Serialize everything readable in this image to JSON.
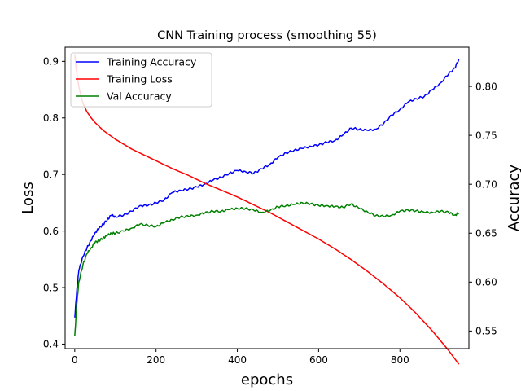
{
  "chart_data": {
    "type": "line",
    "title": "CNN Training process (smoothing 55)",
    "xlabel": "epochs",
    "ylabel_left": "Loss",
    "ylabel_right": "Accuracy",
    "xlim": [
      -23.7,
      969.7
    ],
    "ylim_left": [
      0.392,
      0.925
    ],
    "ylim_right": [
      0.532,
      0.84
    ],
    "x_ticks": [
      0,
      200,
      400,
      600,
      800
    ],
    "y_left_ticks": [
      0.4,
      0.5,
      0.6,
      0.7,
      0.8,
      0.9
    ],
    "y_right_ticks": [
      0.55,
      0.6,
      0.65,
      0.7,
      0.75,
      0.8
    ],
    "legend": {
      "placement": "upper-left",
      "entries": [
        "Training Accuracy",
        "Training Loss",
        "Val Accuracy"
      ]
    },
    "series": [
      {
        "name": "Training Accuracy",
        "axis": "left",
        "color": "#0000ff",
        "x": [
          0,
          5,
          10,
          20,
          30,
          40,
          50,
          60,
          70,
          80,
          90,
          100,
          120,
          140,
          160,
          180,
          200,
          220,
          240,
          260,
          280,
          300,
          320,
          340,
          360,
          380,
          400,
          420,
          440,
          460,
          480,
          500,
          520,
          540,
          560,
          580,
          600,
          620,
          640,
          660,
          680,
          700,
          720,
          740,
          760,
          780,
          800,
          820,
          840,
          860,
          880,
          900,
          920,
          935,
          945
        ],
        "y": [
          0.447,
          0.495,
          0.53,
          0.555,
          0.57,
          0.583,
          0.597,
          0.605,
          0.612,
          0.62,
          0.628,
          0.625,
          0.628,
          0.635,
          0.645,
          0.645,
          0.65,
          0.655,
          0.668,
          0.672,
          0.674,
          0.678,
          0.683,
          0.69,
          0.695,
          0.702,
          0.707,
          0.705,
          0.702,
          0.71,
          0.718,
          0.73,
          0.738,
          0.743,
          0.746,
          0.75,
          0.752,
          0.757,
          0.76,
          0.77,
          0.782,
          0.78,
          0.778,
          0.78,
          0.79,
          0.805,
          0.815,
          0.828,
          0.834,
          0.838,
          0.85,
          0.862,
          0.878,
          0.888,
          0.904
        ]
      },
      {
        "name": "Training Loss",
        "axis": "right",
        "color": "#ff0000",
        "x": [
          0,
          3,
          6,
          10,
          15,
          20,
          30,
          40,
          50,
          60,
          70,
          80,
          100,
          120,
          140,
          160,
          180,
          200,
          240,
          280,
          320,
          360,
          400,
          440,
          480,
          520,
          560,
          600,
          640,
          680,
          720,
          760,
          800,
          840,
          880,
          920,
          945
        ],
        "y": [
          0.833,
          0.82,
          0.81,
          0.8,
          0.79,
          0.783,
          0.774,
          0.768,
          0.763,
          0.759,
          0.755,
          0.752,
          0.746,
          0.741,
          0.736,
          0.732,
          0.728,
          0.724,
          0.716,
          0.709,
          0.701,
          0.694,
          0.687,
          0.679,
          0.671,
          0.662,
          0.653,
          0.644,
          0.634,
          0.623,
          0.611,
          0.598,
          0.584,
          0.568,
          0.55,
          0.53,
          0.516
        ]
      },
      {
        "name": "Val Accuracy",
        "axis": "left",
        "color": "#008000",
        "x": [
          0,
          5,
          10,
          20,
          30,
          40,
          50,
          60,
          70,
          80,
          90,
          100,
          120,
          140,
          160,
          180,
          200,
          220,
          240,
          260,
          280,
          300,
          320,
          340,
          360,
          380,
          400,
          420,
          440,
          460,
          480,
          500,
          520,
          540,
          560,
          580,
          600,
          620,
          640,
          660,
          680,
          700,
          720,
          740,
          760,
          780,
          800,
          820,
          840,
          860,
          880,
          900,
          920,
          935,
          945
        ],
        "y": [
          0.414,
          0.47,
          0.51,
          0.54,
          0.56,
          0.57,
          0.58,
          0.583,
          0.588,
          0.592,
          0.596,
          0.596,
          0.6,
          0.605,
          0.612,
          0.61,
          0.608,
          0.615,
          0.62,
          0.625,
          0.626,
          0.628,
          0.632,
          0.635,
          0.635,
          0.638,
          0.64,
          0.64,
          0.637,
          0.633,
          0.636,
          0.643,
          0.645,
          0.647,
          0.65,
          0.648,
          0.645,
          0.645,
          0.643,
          0.642,
          0.648,
          0.64,
          0.634,
          0.627,
          0.626,
          0.628,
          0.635,
          0.637,
          0.636,
          0.633,
          0.633,
          0.635,
          0.633,
          0.628,
          0.632
        ]
      }
    ]
  }
}
